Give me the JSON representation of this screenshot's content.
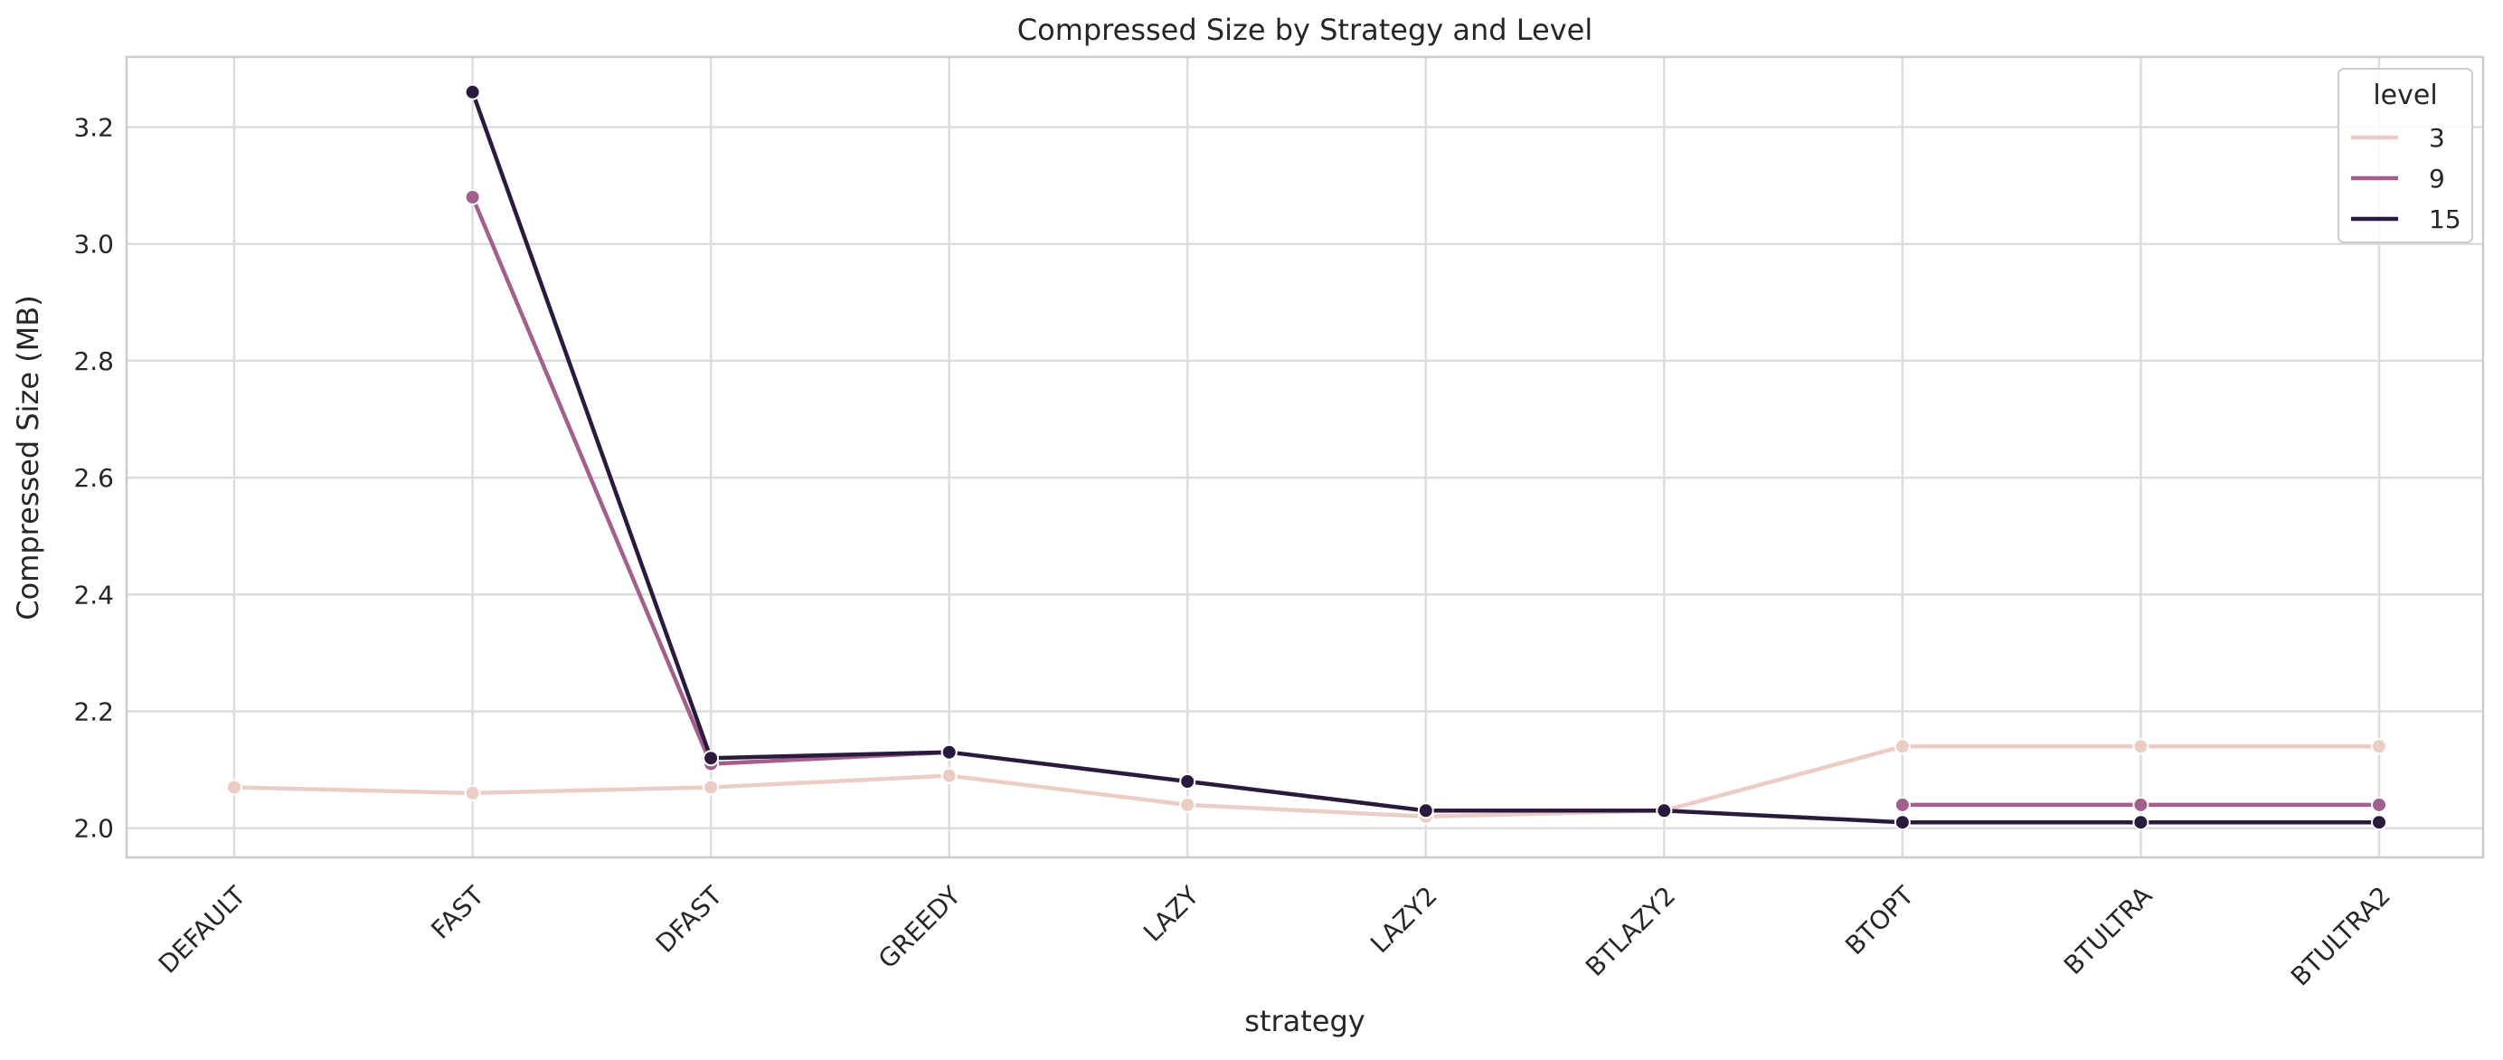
{
  "chart_data": {
    "type": "line",
    "title": "Compressed Size by Strategy and Level",
    "xlabel": "strategy",
    "ylabel": "Compressed Size (MB)",
    "categories": [
      "DEFAULT",
      "FAST",
      "DFAST",
      "GREEDY",
      "LAZY",
      "LAZY2",
      "BTLAZY2",
      "BTOPT",
      "BTULTRA",
      "BTULTRA2"
    ],
    "ylim": [
      1.95,
      3.32
    ],
    "yticks": [
      "2.0",
      "2.2",
      "2.4",
      "2.6",
      "2.8",
      "3.0",
      "3.2"
    ],
    "grid": true,
    "legend": {
      "title": "level",
      "placement": "top-right"
    },
    "series": [
      {
        "name": "3",
        "color": "#ebcdc5",
        "values": [
          2.07,
          2.06,
          2.07,
          2.09,
          2.04,
          2.02,
          2.03,
          2.14,
          2.14,
          2.14
        ]
      },
      {
        "name": "9",
        "color": "#a4608c",
        "values": [
          null,
          3.08,
          2.11,
          2.13,
          null,
          null,
          null,
          2.04,
          2.04,
          2.04
        ]
      },
      {
        "name": "15",
        "color": "#2a1b3e",
        "values": [
          null,
          3.26,
          2.12,
          2.13,
          2.08,
          2.03,
          2.03,
          2.01,
          2.01,
          2.01
        ]
      }
    ]
  }
}
